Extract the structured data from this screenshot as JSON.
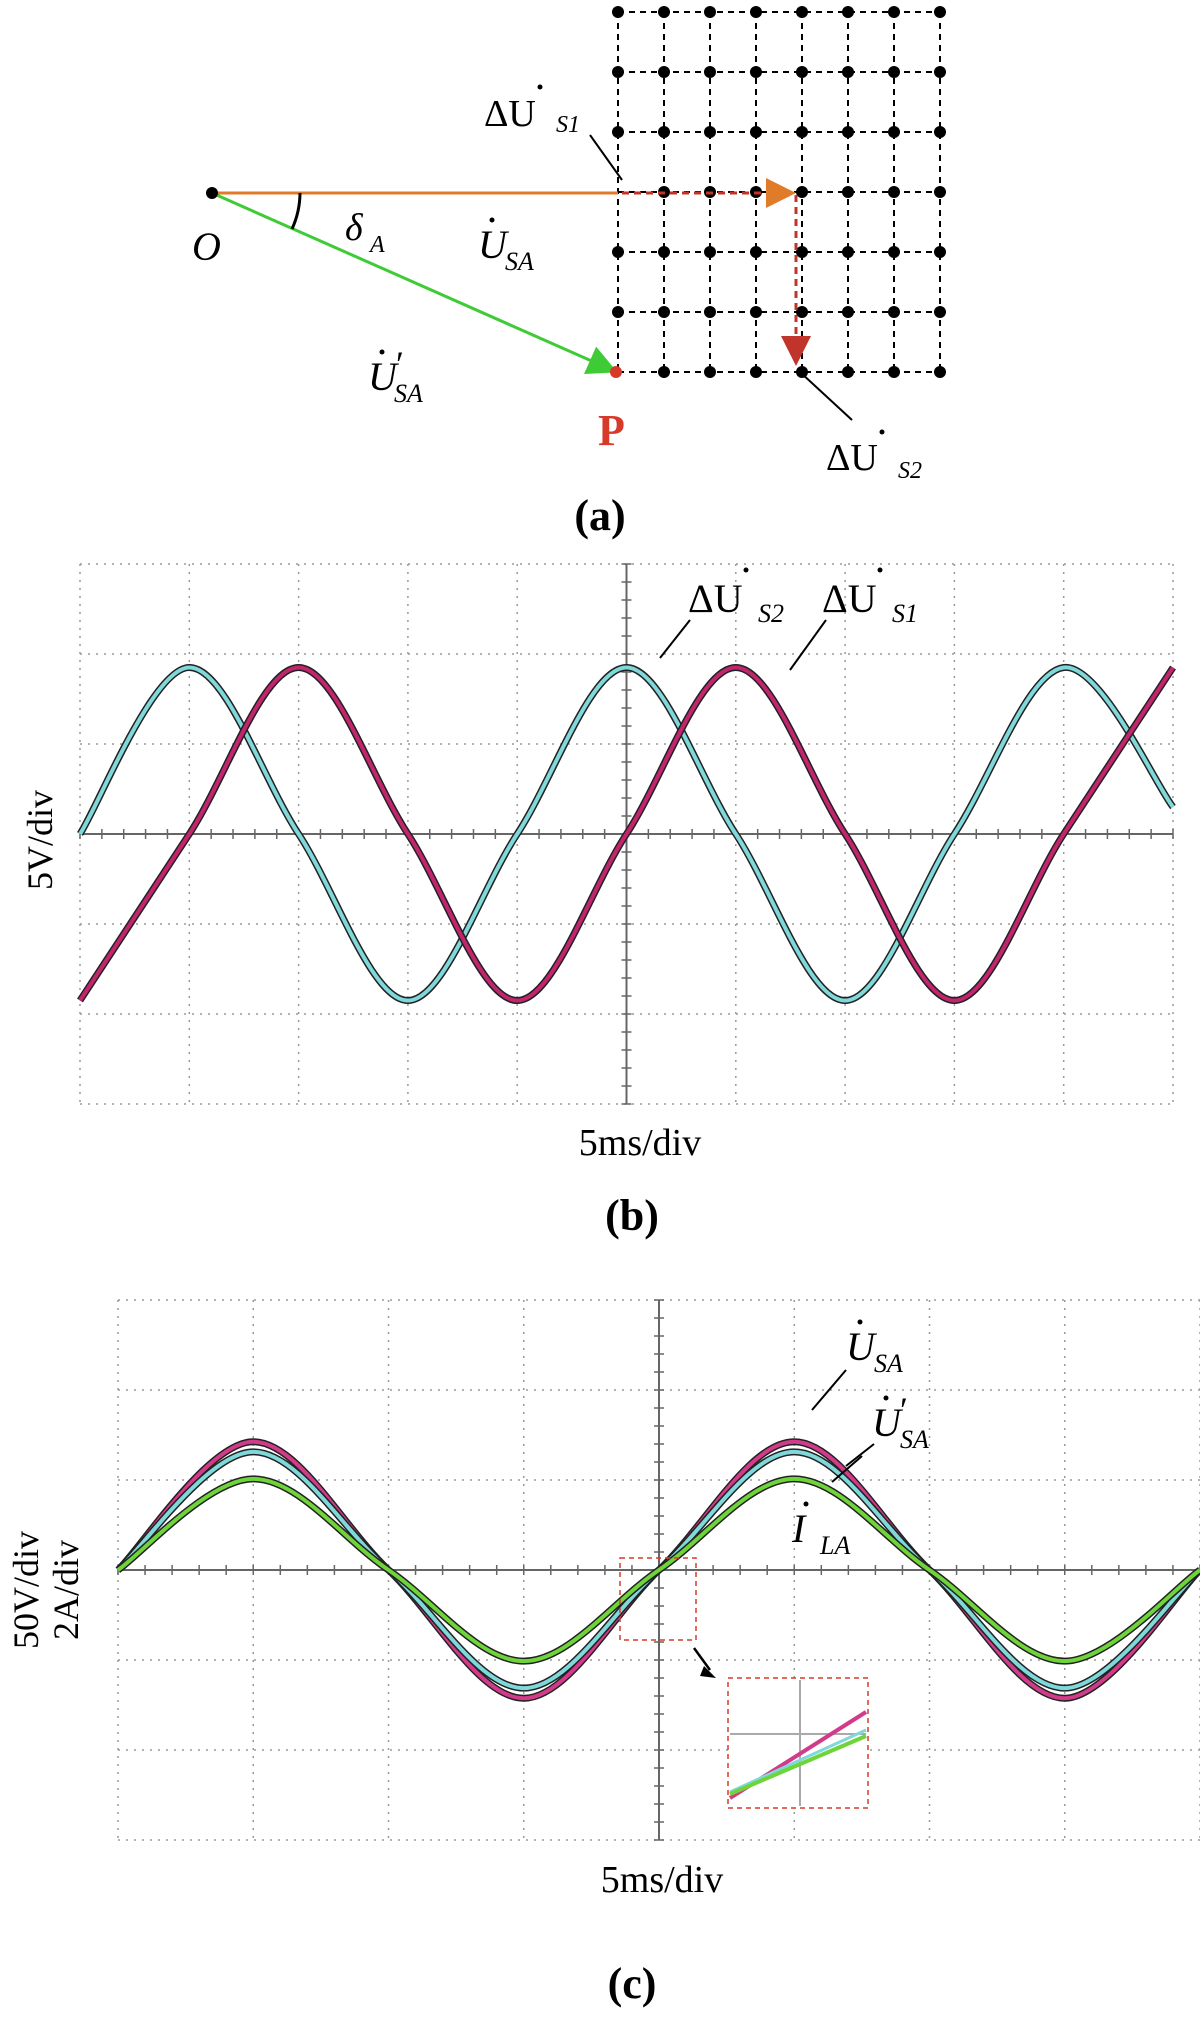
{
  "panel_a": {
    "caption": "(a)",
    "label_O": "O",
    "label_P": "P",
    "label_delta": "δ",
    "label_delta_sub": "A",
    "label_USA": "U",
    "label_USA_sub": "SA",
    "label_USA_prime": "U",
    "label_USA_prime_sup": "′",
    "label_USA_prime_sub": "SA",
    "label_dUS1": "ΔU",
    "label_dUS1_sub": "S1",
    "label_dUS2": "ΔU",
    "label_dUS2_sub": "S2",
    "grid": {
      "cols": 7,
      "rows": 6
    },
    "colors": {
      "USA": "#e07b2a",
      "USA_prime": "#3ecb35",
      "delta": "#c0342b",
      "P": "#d83a2a",
      "grid": "#000000"
    }
  },
  "chart_data": [
    {
      "type": "line",
      "caption": "(b)",
      "xlabel": "5ms/div",
      "ylabel": "5V/div",
      "xlim": [
        -5,
        5
      ],
      "ylim": [
        -3,
        3
      ],
      "grid": "dotted",
      "series": [
        {
          "name": "ΔU̇S2",
          "label_main": "ΔU",
          "label_sub": "S2",
          "color": "#7fd8da",
          "points": [
            [
              -5,
              0
            ],
            [
              -4,
              1.85
            ],
            [
              -3,
              0
            ],
            [
              -2,
              -1.85
            ],
            [
              -1,
              0
            ],
            [
              0,
              1.85
            ],
            [
              1,
              0
            ],
            [
              2,
              -1.85
            ],
            [
              3,
              0
            ],
            [
              4,
              1.85
            ],
            [
              5,
              0.3
            ]
          ]
        },
        {
          "name": "ΔU̇S1",
          "label_main": "ΔU",
          "label_sub": "S1",
          "color": "#c2246e",
          "points": [
            [
              -5,
              -1.85
            ],
            [
              -4,
              0
            ],
            [
              -3,
              1.85
            ],
            [
              -2,
              0
            ],
            [
              -1,
              -1.85
            ],
            [
              0,
              0
            ],
            [
              1,
              1.85
            ],
            [
              2,
              0
            ],
            [
              3,
              -1.85
            ],
            [
              4,
              0
            ],
            [
              5,
              1.85
            ]
          ]
        }
      ]
    },
    {
      "type": "line",
      "caption": "(c)",
      "xlabel": "5ms/div",
      "ylabel": "50V/div",
      "ylabel2": "2A/div",
      "xlim": [
        -5,
        5
      ],
      "ylim": [
        -4,
        4
      ],
      "grid": "dotted",
      "series": [
        {
          "name": "U̇SA",
          "label_main": "U",
          "label_sub": "SA",
          "color": "#d23a8a",
          "points": [
            [
              -5,
              0
            ],
            [
              -3.75,
              1.9
            ],
            [
              -2.5,
              0
            ],
            [
              -1.25,
              -1.9
            ],
            [
              0,
              0
            ],
            [
              1.25,
              1.9
            ],
            [
              2.5,
              0
            ],
            [
              3.75,
              -1.9
            ],
            [
              5,
              0
            ]
          ]
        },
        {
          "name": "U̇′SA",
          "label_main": "U",
          "label_sup": "′",
          "label_sub": "SA",
          "color": "#7fd8da",
          "points": [
            [
              -5,
              0
            ],
            [
              -3.75,
              1.75
            ],
            [
              -2.5,
              0
            ],
            [
              -1.25,
              -1.75
            ],
            [
              0,
              0
            ],
            [
              1.25,
              1.75
            ],
            [
              2.5,
              0
            ],
            [
              3.75,
              -1.75
            ],
            [
              5,
              0
            ]
          ]
        },
        {
          "name": "İLA",
          "label_main": "I",
          "label_sub": "LA",
          "color": "#6fd43a",
          "points": [
            [
              -5,
              0
            ],
            [
              -3.75,
              1.35
            ],
            [
              -2.5,
              0
            ],
            [
              -1.25,
              -1.35
            ],
            [
              0,
              0
            ],
            [
              1.25,
              1.35
            ],
            [
              2.5,
              0
            ],
            [
              3.75,
              -1.35
            ],
            [
              5,
              0
            ]
          ]
        }
      ]
    }
  ]
}
